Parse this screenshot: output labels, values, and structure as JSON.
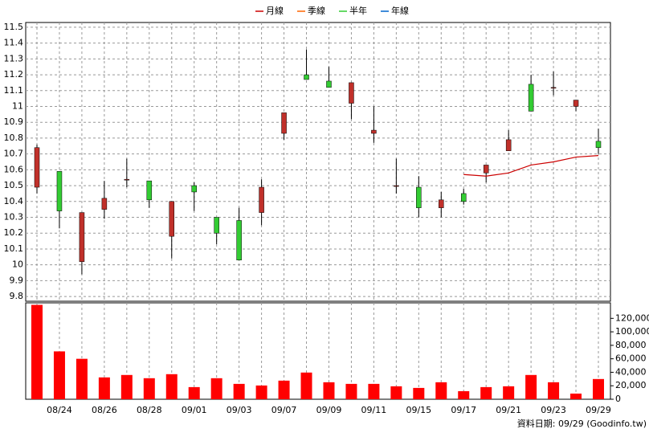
{
  "chart_data": [
    {
      "type": "candlestick",
      "up_color": "#c0302a",
      "down_color": "#33cc33",
      "grid": true,
      "open": [
        10.49,
        10.59,
        10.02,
        10.35,
        10.54,
        10.53,
        10.18,
        10.5,
        10.3,
        10.28,
        10.33,
        10.83,
        11.2,
        11.16,
        11.02,
        10.83,
        10.5,
        10.49,
        10.36,
        10.45,
        10.58,
        10.72,
        11.14,
        11.12,
        11.0,
        10.78
      ],
      "high": [
        10.76,
        10.59,
        10.33,
        10.53,
        10.67,
        10.53,
        10.4,
        10.52,
        10.3,
        10.36,
        10.54,
        10.96,
        11.36,
        11.25,
        11.15,
        11.0,
        10.67,
        10.56,
        10.46,
        10.48,
        10.63,
        10.85,
        11.2,
        11.22,
        11.04,
        10.86
      ],
      "low": [
        10.45,
        10.23,
        9.94,
        10.29,
        10.49,
        10.36,
        10.04,
        10.34,
        10.13,
        10.03,
        10.25,
        10.79,
        11.17,
        11.12,
        10.92,
        10.77,
        10.45,
        10.3,
        10.3,
        10.38,
        10.52,
        10.72,
        10.97,
        11.07,
        10.97,
        10.7
      ],
      "close": [
        10.74,
        10.34,
        10.33,
        10.42,
        10.54,
        10.41,
        10.4,
        10.46,
        10.2,
        10.03,
        10.49,
        10.96,
        11.17,
        11.12,
        11.15,
        10.85,
        10.5,
        10.36,
        10.41,
        10.4,
        10.63,
        10.79,
        10.97,
        11.12,
        11.04,
        10.74
      ],
      "series": [
        {
          "name": "月線",
          "color": "#cc0000",
          "values": [
            null,
            null,
            null,
            null,
            null,
            null,
            null,
            null,
            null,
            null,
            null,
            null,
            null,
            null,
            null,
            null,
            null,
            null,
            null,
            10.57,
            10.56,
            10.58,
            10.63,
            10.65,
            10.68,
            10.69
          ]
        },
        {
          "name": "季線",
          "color": "#ff6600",
          "values": [
            null,
            null,
            null,
            null,
            null,
            null,
            null,
            null,
            null,
            null,
            null,
            null,
            null,
            null,
            null,
            null,
            null,
            null,
            null,
            null,
            null,
            null,
            null,
            null,
            null,
            null
          ]
        },
        {
          "name": "半年",
          "color": "#33cc33",
          "values": [
            null,
            null,
            null,
            null,
            null,
            null,
            null,
            null,
            null,
            null,
            null,
            null,
            null,
            null,
            null,
            null,
            null,
            null,
            null,
            null,
            null,
            null,
            null,
            null,
            null,
            null
          ]
        },
        {
          "name": "年線",
          "color": "#0066cc",
          "values": [
            null,
            null,
            null,
            null,
            null,
            null,
            null,
            null,
            null,
            null,
            null,
            null,
            null,
            null,
            null,
            null,
            null,
            null,
            null,
            null,
            null,
            null,
            null,
            null,
            null,
            null
          ]
        }
      ],
      "ylim": [
        9.77,
        11.53
      ],
      "yticks": [
        9.8,
        9.9,
        10,
        10.1,
        10.2,
        10.3,
        10.4,
        10.5,
        10.6,
        10.7,
        10.8,
        10.9,
        11,
        11.1,
        11.2,
        11.3,
        11.4,
        11.5
      ]
    },
    {
      "type": "bar",
      "color": "#ff0000",
      "grid": true,
      "categories": [
        null,
        "08/24",
        null,
        "08/26",
        null,
        "08/28",
        null,
        "09/01",
        null,
        "09/03",
        null,
        "09/07",
        null,
        "09/09",
        null,
        "09/11",
        null,
        "09/15",
        null,
        "09/17",
        null,
        "09/21",
        null,
        "09/23",
        null,
        "09/29"
      ],
      "values": [
        140000,
        71000,
        60000,
        32400,
        36000,
        31200,
        37200,
        18000,
        31200,
        22800,
        20400,
        27600,
        39600,
        25200,
        22800,
        22800,
        19200,
        16800,
        25200,
        12000,
        18000,
        19200,
        36000,
        25200,
        8400,
        30000
      ],
      "ylim": [
        0,
        143000
      ],
      "yticks": [
        0,
        {
          "value": 20000,
          "label": "20,000"
        },
        {
          "value": 40000,
          "label": "40,000"
        },
        {
          "value": 60000,
          "label": "60,000"
        },
        {
          "value": 80000,
          "label": "80,000"
        },
        {
          "value": 100000,
          "label": "100,000"
        },
        {
          "value": 120000,
          "label": "120,000"
        }
      ]
    }
  ],
  "footer": "資料日期: 09/29 (Goodinfo.tw)"
}
